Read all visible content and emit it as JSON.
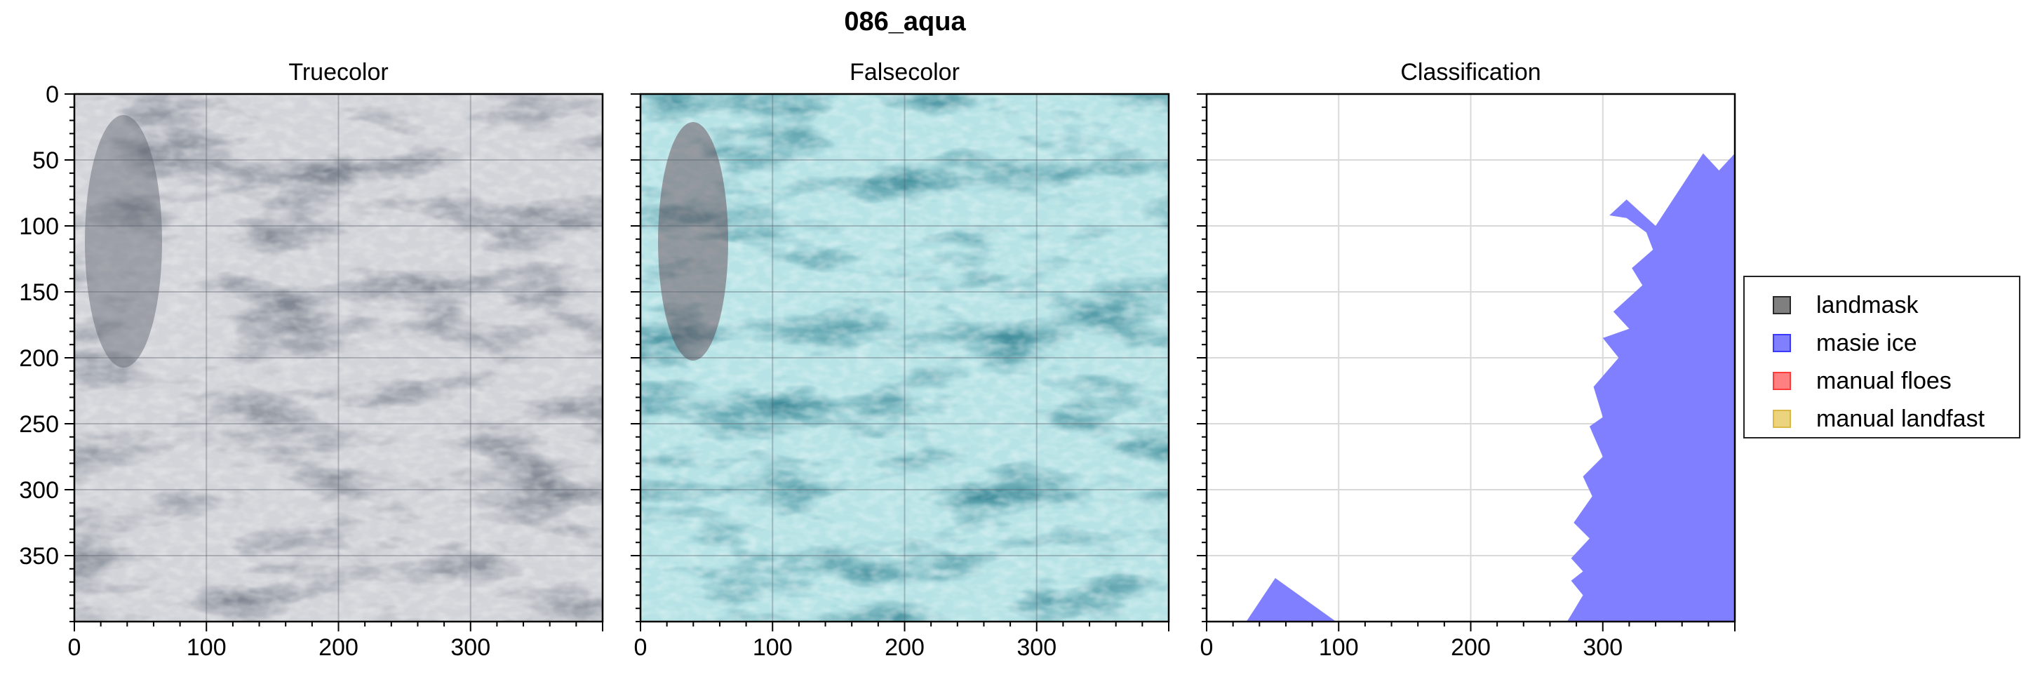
{
  "title": "086_aqua",
  "chart_data": [
    {
      "type": "heatmap",
      "title": "Truecolor",
      "x_ticks": [
        0,
        100,
        200,
        300
      ],
      "y_ticks": [
        0,
        50,
        100,
        150,
        200,
        250,
        300,
        350
      ],
      "xlim": [
        0,
        400
      ],
      "ylim": [
        400,
        0
      ],
      "grid": true,
      "image": "truecolor satellite image"
    },
    {
      "type": "heatmap",
      "title": "Falsecolor",
      "x_ticks": [
        0,
        100,
        200,
        300
      ],
      "xlim": [
        0,
        400
      ],
      "ylim": [
        400,
        0
      ],
      "grid": true,
      "image": "falsecolor satellite image"
    },
    {
      "type": "area",
      "title": "Classification",
      "x_ticks": [
        0,
        100,
        200,
        300
      ],
      "xlim": [
        0,
        400
      ],
      "ylim": [
        400,
        0
      ],
      "grid": true,
      "series": [
        {
          "name": "masie ice",
          "color": "#7f7fff",
          "polygons": [
            [
              [
                30,
                400
              ],
              [
                52,
                367
              ],
              [
                98,
                400
              ]
            ],
            [
              [
                273,
                400
              ],
              [
                285,
                380
              ],
              [
                276,
                369
              ],
              [
                285,
                362
              ],
              [
                276,
                352
              ],
              [
                290,
                337
              ],
              [
                278,
                325
              ],
              [
                292,
                305
              ],
              [
                285,
                290
              ],
              [
                300,
                275
              ],
              [
                290,
                252
              ],
              [
                300,
                245
              ],
              [
                293,
                222
              ],
              [
                312,
                200
              ],
              [
                300,
                185
              ],
              [
                320,
                178
              ],
              [
                308,
                165
              ],
              [
                330,
                145
              ],
              [
                322,
                132
              ],
              [
                338,
                118
              ],
              [
                333,
                105
              ],
              [
                318,
                94
              ],
              [
                305,
                92
              ],
              [
                318,
                80
              ],
              [
                340,
                100
              ],
              [
                376,
                45
              ],
              [
                388,
                58
              ],
              [
                400,
                45
              ],
              [
                400,
                400
              ]
            ]
          ]
        }
      ]
    }
  ],
  "legend": {
    "placement": "center-right",
    "items": [
      {
        "label": "landmask",
        "fill": "#7f7f7f",
        "edge": "#2a2a2a"
      },
      {
        "label": "masie ice",
        "fill": "#8080ff",
        "edge": "#3a3aff"
      },
      {
        "label": "manual floes",
        "fill": "#ff8080",
        "edge": "#ff3a3a"
      },
      {
        "label": "manual landfast",
        "fill": "#ecd47e",
        "edge": "#d9b846"
      }
    ]
  }
}
